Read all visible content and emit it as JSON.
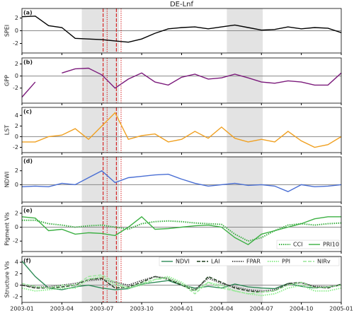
{
  "events": {
    "shaded": [
      [
        4.5,
        7.3
      ],
      [
        15.4,
        18.1
      ]
    ],
    "dashed": [
      6.1,
      7.1
    ],
    "dotted": [
      6.4,
      7.45
    ],
    "shade_color": "#e3e3e3",
    "line_color": "#d62728"
  },
  "chart_data": [
    {
      "type": "line",
      "title": "DE-Lnf",
      "panel_label": "(a)",
      "ylabel": "SPEI",
      "ylim": [
        -3.5,
        3.5
      ],
      "yticks": [
        -2,
        0,
        2
      ],
      "x": [
        0,
        1,
        2,
        3,
        4,
        5,
        6,
        7,
        8,
        9,
        10,
        11,
        12,
        13,
        14,
        15,
        16,
        17,
        18,
        19,
        20,
        21,
        22,
        23,
        24
      ],
      "series": [
        {
          "name": "SPEI",
          "color": "#000000",
          "dash": "solid",
          "values": [
            2.2,
            2.3,
            0.8,
            0.5,
            -1.2,
            -1.3,
            -1.4,
            -1.6,
            -1.8,
            -1.3,
            -0.4,
            0.3,
            0.5,
            0.6,
            0.3,
            0.6,
            0.9,
            0.5,
            0.1,
            0.2,
            0.6,
            0.3,
            0.5,
            0.4,
            -0.3
          ]
        }
      ]
    },
    {
      "type": "line",
      "panel_label": "(b)",
      "ylabel": "GPP",
      "ylim": [
        -4.5,
        3
      ],
      "yticks": [
        -2,
        0,
        2
      ],
      "x": [
        0,
        1,
        2,
        3,
        4,
        5,
        6,
        7,
        8,
        9,
        10,
        11,
        12,
        13,
        14,
        15,
        16,
        17,
        18,
        19,
        20,
        21,
        22,
        23,
        24
      ],
      "series": [
        {
          "name": "GPP",
          "color": "#7b1a7b",
          "dash": "solid",
          "values": [
            -3.5,
            -1,
            null,
            0.5,
            1.2,
            1.3,
            0.2,
            -2,
            -0.5,
            0.5,
            -1,
            -1.5,
            -0.2,
            0.3,
            -0.5,
            -0.3,
            0.3,
            -0.3,
            -1,
            -1.2,
            -0.8,
            -1,
            -1.5,
            -1.5,
            0.5
          ]
        }
      ]
    },
    {
      "type": "line",
      "panel_label": "(c)",
      "ylabel": "LST",
      "ylim": [
        -3,
        5.5
      ],
      "yticks": [
        -2,
        0,
        2,
        4
      ],
      "x": [
        0,
        1,
        2,
        3,
        4,
        5,
        6,
        7,
        8,
        9,
        10,
        11,
        12,
        13,
        14,
        15,
        16,
        17,
        18,
        19,
        20,
        21,
        22,
        23,
        24
      ],
      "series": [
        {
          "name": "LST",
          "color": "#f0a020",
          "dash": "solid",
          "values": [
            -1,
            -1,
            0,
            0.3,
            1.5,
            -0.5,
            2,
            4.5,
            -0.5,
            0.2,
            0.5,
            -1,
            -0.5,
            1,
            -0.3,
            1.8,
            -0.3,
            -1,
            -0.5,
            -1,
            1,
            -0.8,
            -2,
            -1.5,
            0
          ]
        }
      ]
    },
    {
      "type": "line",
      "panel_label": "(d)",
      "ylabel": "NDWI",
      "ylim": [
        -2.5,
        4
      ],
      "yticks": [
        0,
        2
      ],
      "x": [
        0,
        1,
        2,
        3,
        4,
        5,
        6,
        7,
        8,
        9,
        10,
        11,
        12,
        13,
        14,
        15,
        16,
        17,
        18,
        19,
        20,
        21,
        22,
        23,
        24
      ],
      "series": [
        {
          "name": "NDWI",
          "color": "#4a6fd4",
          "dash": "solid",
          "values": [
            -0.3,
            -0.2,
            -0.3,
            0.2,
            0,
            1,
            2,
            0.3,
            1,
            1.2,
            1.4,
            1.5,
            0.8,
            0.2,
            -0.2,
            0,
            0.2,
            -0.1,
            0,
            -0.2,
            -1,
            0,
            -0.3,
            -0.2,
            0
          ]
        }
      ]
    },
    {
      "type": "line",
      "panel_label": "(e)",
      "ylabel": "Pigment VIs",
      "ylim": [
        -3.5,
        3
      ],
      "yticks": [
        -2,
        0,
        2
      ],
      "legend": "lower right",
      "x": [
        0,
        1,
        2,
        3,
        4,
        5,
        6,
        7,
        8,
        9,
        10,
        11,
        12,
        13,
        14,
        15,
        16,
        17,
        18,
        19,
        20,
        21,
        22,
        23,
        24
      ],
      "series": [
        {
          "name": "CCI",
          "color": "#3cb043",
          "dash": "dotted",
          "values": [
            1,
            1,
            0.5,
            0.3,
            0,
            0.2,
            0.3,
            0,
            -0.3,
            0.5,
            0.8,
            0.9,
            0.8,
            0.6,
            0.5,
            0.4,
            -1,
            -2,
            -1.5,
            -0.5,
            0.3,
            0.5,
            0.3,
            0.5,
            0.6
          ]
        },
        {
          "name": "PRI10",
          "color": "#3cb043",
          "dash": "solid",
          "values": [
            1.5,
            1.3,
            -0.5,
            -0.3,
            -1,
            -0.8,
            -0.9,
            -1.2,
            0,
            1.5,
            -0.3,
            -0.2,
            0,
            0.2,
            0.3,
            0,
            -1.5,
            -2.5,
            -1,
            -0.5,
            0,
            0.5,
            1.2,
            1.5,
            1.5
          ]
        }
      ]
    },
    {
      "type": "line",
      "panel_label": "(f)",
      "ylabel": "Structure VIs",
      "ylim": [
        -3,
        5
      ],
      "yticks": [
        -2,
        0,
        2,
        4
      ],
      "legend": "upper right",
      "x": [
        0,
        1,
        2,
        3,
        4,
        5,
        6,
        7,
        8,
        9,
        10,
        11,
        12,
        13,
        14,
        15,
        16,
        17,
        18,
        19,
        20,
        21,
        22,
        23,
        24
      ],
      "xticks": [
        {
          "value": 0,
          "label": "2003-01"
        },
        {
          "value": 3,
          "label": "2003-04"
        },
        {
          "value": 6,
          "label": "2003-07"
        },
        {
          "value": 9,
          "label": "2003-10"
        },
        {
          "value": 12,
          "label": "2004-01"
        },
        {
          "value": 15,
          "label": "2004-04"
        },
        {
          "value": 18,
          "label": "2004-07"
        },
        {
          "value": 21,
          "label": "2004-10"
        },
        {
          "value": 24,
          "label": "2005-01"
        }
      ],
      "series": [
        {
          "name": "NDVI",
          "color": "#2e8b57",
          "dash": "solid",
          "values": [
            4.2,
            1.5,
            -0.5,
            -0.8,
            -0.3,
            0,
            -0.5,
            -0.8,
            -0.6,
            0.2,
            0.5,
            0.8,
            0,
            -0.5,
            -0.2,
            -0.5,
            0.2,
            -0.3,
            -0.5,
            -0.6,
            0.3,
            -0.2,
            -0.5,
            -0.3,
            0
          ]
        },
        {
          "name": "LAI",
          "color": "#1a3d1a",
          "dash": "dashed",
          "values": [
            0,
            -0.5,
            -0.5,
            -0.3,
            0,
            1,
            1.2,
            -0.5,
            -0.3,
            0.5,
            1.5,
            1,
            0,
            -1,
            1.5,
            0.5,
            -0.5,
            -1,
            -1.2,
            -1,
            0.3,
            0.5,
            -0.3,
            -0.5,
            0.2
          ]
        },
        {
          "name": "FPAR",
          "color": "#555555",
          "dash": "dotted",
          "values": [
            0,
            -0.3,
            -0.3,
            0,
            0.3,
            0.8,
            1,
            0.5,
            0,
            0.8,
            1.5,
            1.2,
            0.2,
            -0.8,
            1.2,
            0.3,
            -0.3,
            -0.8,
            -1,
            -0.8,
            0.2,
            0.4,
            -0.2,
            -0.3,
            0
          ]
        },
        {
          "name": "PPI",
          "color": "#90ee90",
          "dash": "dotted",
          "values": [
            -0.5,
            -1,
            -0.8,
            -0.5,
            -0.5,
            1,
            1.5,
            0,
            -0.5,
            0,
            1,
            1.5,
            0.5,
            -1,
            0.5,
            0,
            -1,
            -1.5,
            -1.8,
            -1.5,
            -0.5,
            0,
            -1,
            -1,
            -0.5
          ]
        },
        {
          "name": "NIRv",
          "color": "#98e698",
          "dash": "dashed",
          "values": [
            0.3,
            -0.2,
            -0.5,
            0,
            0,
            1.5,
            1.8,
            0.5,
            -0.5,
            0.3,
            1,
            1.2,
            0.2,
            -1.5,
            0.5,
            -0.5,
            -1,
            -1.5,
            -1.2,
            -1,
            0,
            0.5,
            -0.5,
            -0.3,
            0
          ]
        }
      ]
    }
  ]
}
